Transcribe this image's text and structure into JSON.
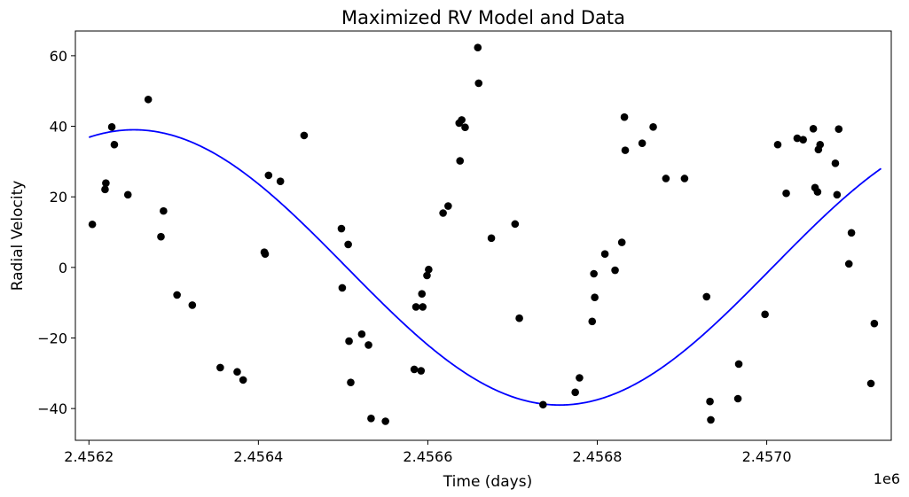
{
  "chart_data": {
    "type": "scatter",
    "title": "Maximized RV Model and Data",
    "xlabel": "Time (days)",
    "ylabel": "Radial Velocity",
    "offset_label": "1e6",
    "x_ticks": [
      2.4562,
      2.4564,
      2.4566,
      2.4568,
      2.457
    ],
    "x_tick_labels": [
      "2.4562",
      "2.4564",
      "2.4566",
      "2.4568",
      "2.4570"
    ],
    "y_ticks": [
      -40,
      -20,
      0,
      20,
      40,
      60
    ],
    "y_tick_labels": [
      "−40",
      "−20",
      "0",
      "20",
      "40",
      "60"
    ],
    "xlim": [
      2456184,
      2457147
    ],
    "ylim": [
      -49,
      67
    ],
    "grid": false,
    "colors": {
      "model": "#0000ff",
      "data": "#000000"
    },
    "series": [
      {
        "kind": "line",
        "amplitude": 39,
        "period": 1005,
        "peak_time": 2456253,
        "x_start": 2456200,
        "x_end": 2457135
      },
      {
        "kind": "scatter",
        "points": [
          [
            2456204,
            12.2
          ],
          [
            2456219,
            22.1
          ],
          [
            2456220,
            23.9
          ],
          [
            2456227,
            39.8
          ],
          [
            2456230,
            34.8
          ],
          [
            2456246,
            20.6
          ],
          [
            2456270,
            47.6
          ],
          [
            2456285,
            8.7
          ],
          [
            2456288,
            16
          ],
          [
            2456304,
            -7.8
          ],
          [
            2456322,
            -10.7
          ],
          [
            2456355,
            -28.4
          ],
          [
            2456375,
            -29.6
          ],
          [
            2456382,
            -31.9
          ],
          [
            2456407,
            4.3
          ],
          [
            2456408,
            3.8
          ],
          [
            2456412,
            26.1
          ],
          [
            2456426,
            24.4
          ],
          [
            2456454,
            37.4
          ],
          [
            2456498,
            11
          ],
          [
            2456499,
            -5.8
          ],
          [
            2456506,
            6.5
          ],
          [
            2456507,
            -20.9
          ],
          [
            2456509,
            -32.6
          ],
          [
            2456522,
            -18.9
          ],
          [
            2456530,
            -22
          ],
          [
            2456533,
            -42.8
          ],
          [
            2456550,
            -43.6
          ],
          [
            2456584,
            -28.9
          ],
          [
            2456586,
            -11.2
          ],
          [
            2456592,
            -29.3
          ],
          [
            2456593,
            -7.5
          ],
          [
            2456594,
            -11.2
          ],
          [
            2456599,
            -2.3
          ],
          [
            2456601,
            -0.6
          ],
          [
            2456618,
            15.4
          ],
          [
            2456624,
            17.4
          ],
          [
            2456637,
            40.9
          ],
          [
            2456638,
            30.2
          ],
          [
            2456640,
            41.8
          ],
          [
            2456644,
            39.7
          ],
          [
            2456659,
            62.3
          ],
          [
            2456660,
            52.2
          ],
          [
            2456675,
            8.3
          ],
          [
            2456703,
            12.3
          ],
          [
            2456708,
            -14.4
          ],
          [
            2456736,
            -38.9
          ],
          [
            2456774,
            -35.4
          ],
          [
            2456779,
            -31.3
          ],
          [
            2456794,
            -15.3
          ],
          [
            2456796,
            -1.8
          ],
          [
            2456797,
            -8.5
          ],
          [
            2456809,
            3.8
          ],
          [
            2456821,
            -0.8
          ],
          [
            2456829,
            7.1
          ],
          [
            2456832,
            42.6
          ],
          [
            2456833,
            33.2
          ],
          [
            2456853,
            35.2
          ],
          [
            2456866,
            39.8
          ],
          [
            2456881,
            25.2
          ],
          [
            2456903,
            25.2
          ],
          [
            2456929,
            -8.3
          ],
          [
            2456933,
            -38
          ],
          [
            2456934,
            -43.2
          ],
          [
            2456966,
            -37.2
          ],
          [
            2456967,
            -27.4
          ],
          [
            2456998,
            -13.3
          ],
          [
            2457013,
            34.8
          ],
          [
            2457023,
            21
          ],
          [
            2457036,
            36.6
          ],
          [
            2457043,
            36.2
          ],
          [
            2457055,
            39.3
          ],
          [
            2457057,
            22.6
          ],
          [
            2457060,
            21.4
          ],
          [
            2457061,
            33.4
          ],
          [
            2457063,
            34.8
          ],
          [
            2457081,
            29.5
          ],
          [
            2457083,
            20.6
          ],
          [
            2457085,
            39.2
          ],
          [
            2457097,
            1
          ],
          [
            2457100,
            9.8
          ],
          [
            2457123,
            -32.9
          ],
          [
            2457127,
            -15.9
          ]
        ]
      }
    ]
  }
}
